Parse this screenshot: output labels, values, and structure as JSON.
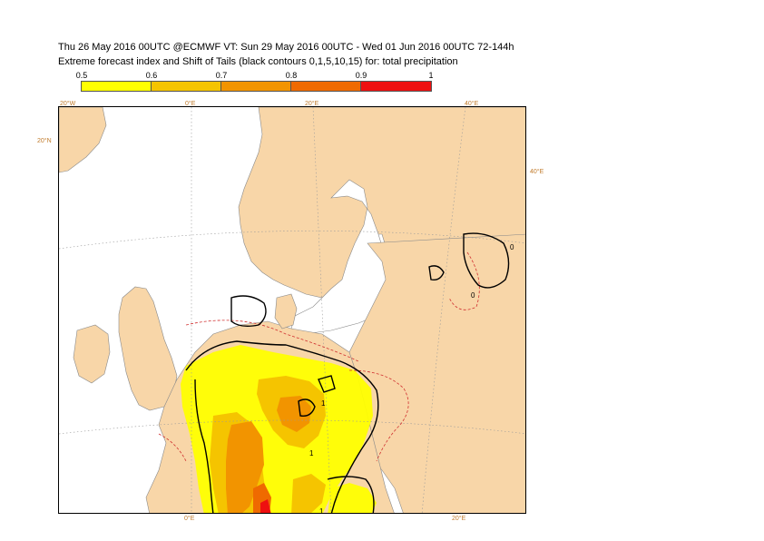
{
  "title": {
    "line1": "Thu 26 May 2016 00UTC @ECMWF VT: Sun 29 May 2016 00UTC - Wed 01 Jun 2016 00UTC  72-144h",
    "line2": "Extreme forecast index and Shift of Tails (black contours 0,1,5,10,15) for: total precipitation"
  },
  "colorbar": {
    "ticks": [
      "0.5",
      "0.6",
      "0.7",
      "0.8",
      "0.9",
      "1"
    ],
    "colors": [
      "#ffff00",
      "#f5c400",
      "#f29400",
      "#ef6a00",
      "#ee1010"
    ]
  },
  "grid_labels": {
    "lon_top": [
      "20°W",
      "0°E",
      "20°E",
      "40°E"
    ],
    "lon_bottom": [
      "0°E",
      "20°E"
    ],
    "lat_left": [
      "20°N",
      "50°N"
    ],
    "lon_right": [
      "40°E"
    ]
  },
  "contour_labels": [
    "0",
    "1",
    "1",
    "1",
    "0"
  ],
  "colors": {
    "land": "#f8d6a8",
    "sea": "#ffffff",
    "border": "#8a8a8a",
    "gridline": "#9a9a9a",
    "efi_red_dashed": "#d03030",
    "sot_contour": "#000000"
  }
}
